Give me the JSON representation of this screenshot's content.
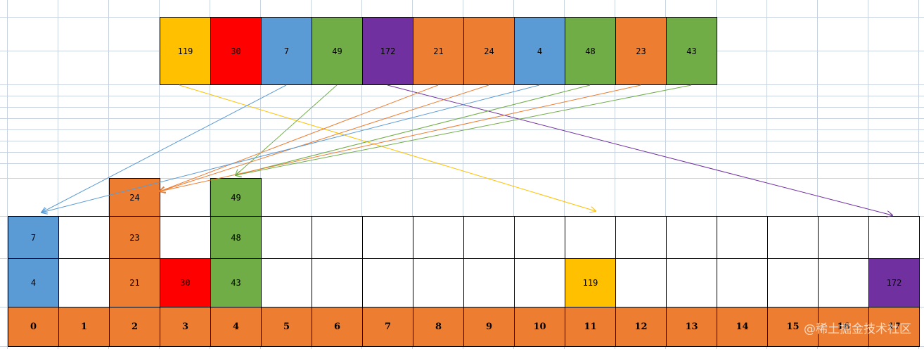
{
  "colors": {
    "yellow": "#FFC000",
    "red": "#FF0000",
    "blue": "#5B9BD5",
    "green": "#70AD47",
    "purple": "#7030A0",
    "orange": "#ED7D31",
    "gridline": "#C9D3DF",
    "empty": "#FFFFFF"
  },
  "input": [
    {
      "value": "119",
      "color": "yellow",
      "bucket": 11
    },
    {
      "value": "30",
      "color": "red",
      "bucket": 3
    },
    {
      "value": "7",
      "color": "blue",
      "bucket": 0
    },
    {
      "value": "49",
      "color": "green",
      "bucket": 4
    },
    {
      "value": "172",
      "color": "purple",
      "bucket": 17
    },
    {
      "value": "21",
      "color": "orange",
      "bucket": 2
    },
    {
      "value": "24",
      "color": "orange",
      "bucket": 2
    },
    {
      "value": "4",
      "color": "blue",
      "bucket": 0
    },
    {
      "value": "48",
      "color": "green",
      "bucket": 4
    },
    {
      "value": "23",
      "color": "orange",
      "bucket": 2
    },
    {
      "value": "43",
      "color": "green",
      "bucket": 4
    }
  ],
  "bucket_indices": [
    "0",
    "1",
    "2",
    "3",
    "4",
    "5",
    "6",
    "7",
    "8",
    "9",
    "10",
    "11",
    "12",
    "13",
    "14",
    "15",
    "16",
    "17"
  ],
  "buckets": [
    {
      "index": 0,
      "items": [
        {
          "value": "4",
          "color": "blue"
        },
        {
          "value": "7",
          "color": "blue"
        }
      ]
    },
    {
      "index": 2,
      "items": [
        {
          "value": "21",
          "color": "orange"
        },
        {
          "value": "23",
          "color": "orange"
        },
        {
          "value": "24",
          "color": "orange"
        }
      ]
    },
    {
      "index": 3,
      "items": [
        {
          "value": "30",
          "color": "red"
        }
      ]
    },
    {
      "index": 4,
      "items": [
        {
          "value": "43",
          "color": "green"
        },
        {
          "value": "48",
          "color": "green"
        },
        {
          "value": "49",
          "color": "green"
        }
      ]
    },
    {
      "index": 11,
      "items": [
        {
          "value": "119",
          "color": "yellow"
        }
      ]
    },
    {
      "index": 17,
      "items": [
        {
          "value": "172",
          "color": "purple"
        }
      ]
    }
  ],
  "watermark": "@稀土掘金技术社区"
}
